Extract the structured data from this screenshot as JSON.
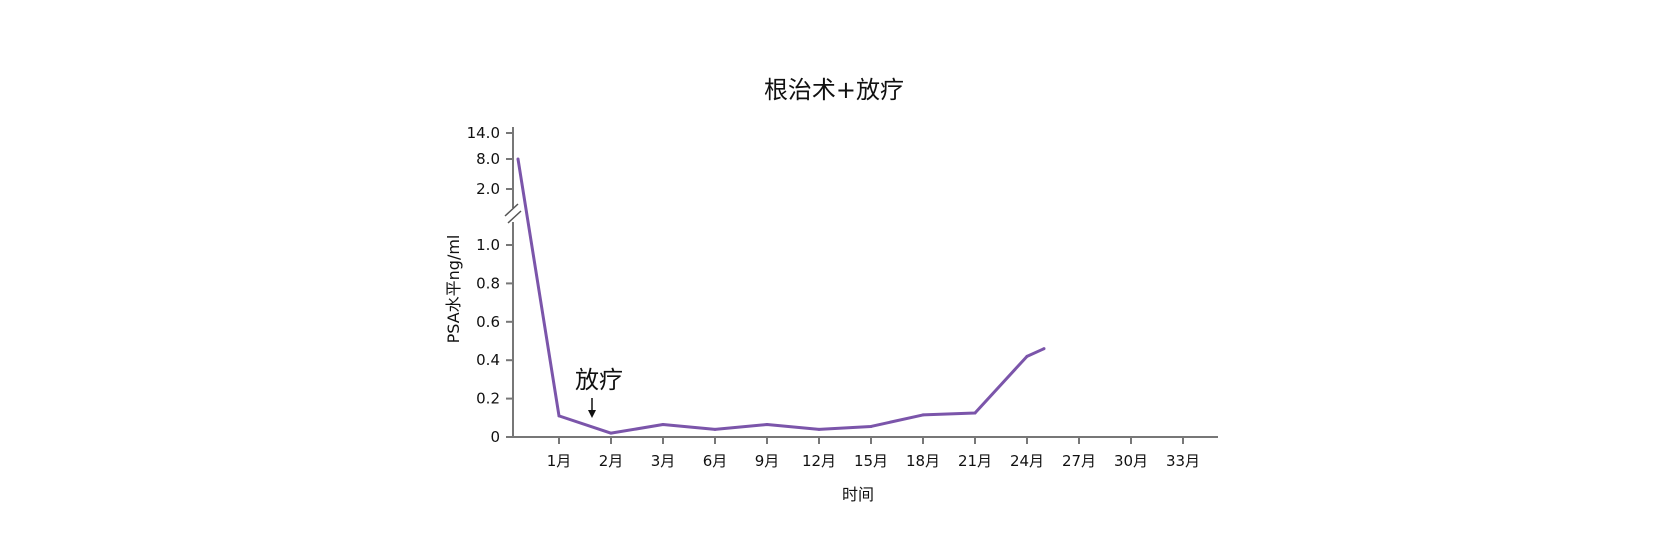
{
  "chart_data": {
    "type": "line",
    "title": "根治术+放疗",
    "xlabel": "时间",
    "ylabel": "PSA水平ng/ml",
    "categories": [
      "1月",
      "2月",
      "3月",
      "6月",
      "9月",
      "12月",
      "15月",
      "18月",
      "21月",
      "24月",
      "27月",
      "30月",
      "33月"
    ],
    "y_ticks": [
      "0",
      "0.2",
      "0.4",
      "0.6",
      "0.8",
      "1.0",
      "2.0",
      "8.0",
      "14.0"
    ],
    "y_axis_break": "between 1.0 and 2.0",
    "series": [
      {
        "color": "#7b55aa",
        "points": [
          {
            "x": "baseline",
            "y": 8.0
          },
          {
            "x": "1月",
            "y": 0.11
          },
          {
            "x": "2月",
            "y": 0.02
          },
          {
            "x": "3月",
            "y": 0.065
          },
          {
            "x": "6月",
            "y": 0.04
          },
          {
            "x": "9月",
            "y": 0.065
          },
          {
            "x": "12月",
            "y": 0.04
          },
          {
            "x": "15月",
            "y": 0.055
          },
          {
            "x": "18月",
            "y": 0.115
          },
          {
            "x": "21月",
            "y": 0.125
          },
          {
            "x": "24月",
            "y": 0.42
          },
          {
            "x": "25月",
            "y": 0.46
          }
        ]
      }
    ],
    "annotations": [
      {
        "text": "放疗",
        "at": "between 1月 and 2月",
        "arrow": "down"
      }
    ],
    "grid": false,
    "legend": "none"
  }
}
